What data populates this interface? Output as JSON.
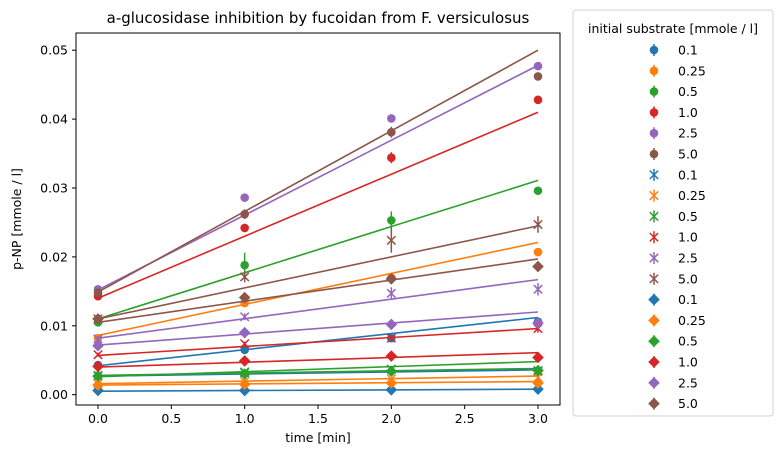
{
  "chart_data": {
    "type": "scatter",
    "title": "a-glucosidase inhibition by fucoidan from F. versiculosus",
    "xlabel": "time [min]",
    "ylabel": "p-NP [mmole / l]",
    "xlim": [
      -0.15,
      3.15
    ],
    "ylim": [
      -0.0015,
      0.0525
    ],
    "x_ticks": [
      0.0,
      0.5,
      1.0,
      1.5,
      2.0,
      2.5,
      3.0
    ],
    "x_tick_labels": [
      "0.0",
      "0.5",
      "1.0",
      "1.5",
      "2.0",
      "2.5",
      "3.0"
    ],
    "y_ticks": [
      0.0,
      0.01,
      0.02,
      0.03,
      0.04,
      0.05
    ],
    "y_tick_labels": [
      "0.00",
      "0.01",
      "0.02",
      "0.03",
      "0.04",
      "0.05"
    ],
    "grid": false,
    "legend": {
      "title": "initial substrate [mmole / l]",
      "placement": "outside-right"
    },
    "x": [
      0,
      1,
      2,
      3
    ],
    "series": [
      {
        "name": "0.1",
        "marker": "circle",
        "color": "#1f77b4",
        "values": [
          0.0043,
          0.0065,
          0.0082,
          0.0106
        ],
        "err": [
          0.0003,
          0.0003,
          0.0003,
          0.0004
        ],
        "fit": [
          0.0042,
          0.0112
        ]
      },
      {
        "name": "0.25",
        "marker": "circle",
        "color": "#ff7f0e",
        "values": [
          0.0082,
          0.0133,
          0.017,
          0.0207
        ],
        "err": [
          0.0003,
          0.0004,
          0.0004,
          0.0004
        ],
        "fit": [
          0.0086,
          0.0221
        ]
      },
      {
        "name": "0.5",
        "marker": "circle",
        "color": "#2ca02c",
        "values": [
          0.0105,
          0.0188,
          0.0253,
          0.0296
        ],
        "err": [
          0.0004,
          0.0018,
          0.0013,
          0.0005
        ],
        "fit": [
          0.011,
          0.0311
        ]
      },
      {
        "name": "1.0",
        "marker": "circle",
        "color": "#d62728",
        "values": [
          0.0143,
          0.0242,
          0.0344,
          0.0428
        ],
        "err": [
          0.0004,
          0.0006,
          0.0008,
          0.0004
        ],
        "fit": [
          0.014,
          0.041
        ]
      },
      {
        "name": "2.5",
        "marker": "circle",
        "color": "#9467bd",
        "values": [
          0.0153,
          0.0286,
          0.0401,
          0.0477
        ],
        "err": [
          0.0004,
          0.0004,
          0.0004,
          0.0004
        ],
        "fit": [
          0.0152,
          0.0478
        ]
      },
      {
        "name": "5.0",
        "marker": "circle",
        "color": "#8c564b",
        "values": [
          0.0148,
          0.0262,
          0.0381,
          0.0462
        ],
        "err": [
          0.0004,
          0.0007,
          0.0008,
          0.0005
        ],
        "fit": [
          0.0149,
          0.05
        ]
      },
      {
        "name": "0.1",
        "marker": "x",
        "color": "#1f77b4",
        "values": [
          0.0027,
          0.0032,
          0.0037,
          0.0034
        ],
        "err": [
          0.0002,
          0.0002,
          0.0002,
          0.0002
        ],
        "fit": [
          0.0027,
          0.0036
        ]
      },
      {
        "name": "0.25",
        "marker": "x",
        "color": "#ff7f0e",
        "values": [
          0.0016,
          0.0019,
          0.0023,
          0.0025
        ],
        "err": [
          0.0002,
          0.0002,
          0.0002,
          0.0002
        ],
        "fit": [
          0.0016,
          0.0027
        ]
      },
      {
        "name": "0.5",
        "marker": "x",
        "color": "#2ca02c",
        "values": [
          0.0028,
          0.0033,
          0.0037,
          0.0035
        ],
        "err": [
          0.0002,
          0.0002,
          0.0002,
          0.0002
        ],
        "fit": [
          0.0028,
          0.0038
        ]
      },
      {
        "name": "1.0",
        "marker": "x",
        "color": "#d62728",
        "values": [
          0.0058,
          0.0074,
          0.0082,
          0.0096
        ],
        "err": [
          0.0003,
          0.0003,
          0.0003,
          0.0006
        ],
        "fit": [
          0.0057,
          0.0096
        ]
      },
      {
        "name": "2.5",
        "marker": "x",
        "color": "#9467bd",
        "values": [
          0.0081,
          0.0113,
          0.0147,
          0.0153
        ],
        "err": [
          0.0004,
          0.0005,
          0.0009,
          0.0009
        ],
        "fit": [
          0.0082,
          0.0167
        ]
      },
      {
        "name": "5.0",
        "marker": "x",
        "color": "#8c564b",
        "values": [
          0.011,
          0.0171,
          0.0224,
          0.0247
        ],
        "err": [
          0.0005,
          0.0008,
          0.0018,
          0.0012
        ],
        "fit": [
          0.011,
          0.0245
        ]
      },
      {
        "name": "0.1",
        "marker": "diamond",
        "color": "#1f77b4",
        "values": [
          0.0006,
          0.0006,
          0.0007,
          0.0008
        ],
        "err": [
          0.0001,
          0.0001,
          0.0001,
          0.0001
        ],
        "fit": [
          0.0005,
          0.0008
        ]
      },
      {
        "name": "0.25",
        "marker": "diamond",
        "color": "#ff7f0e",
        "values": [
          0.0014,
          0.0015,
          0.0017,
          0.0017
        ],
        "err": [
          0.0001,
          0.0001,
          0.0001,
          0.0001
        ],
        "fit": [
          0.0014,
          0.0019
        ]
      },
      {
        "name": "0.5",
        "marker": "diamond",
        "color": "#2ca02c",
        "values": [
          0.0027,
          0.003,
          0.0034,
          0.0035
        ],
        "err": [
          0.0002,
          0.0002,
          0.0002,
          0.0002
        ],
        "fit": [
          0.0026,
          0.0048
        ]
      },
      {
        "name": "1.0",
        "marker": "diamond",
        "color": "#d62728",
        "values": [
          0.0041,
          0.0049,
          0.0056,
          0.0054
        ],
        "err": [
          0.0002,
          0.0002,
          0.0002,
          0.0002
        ],
        "fit": [
          0.004,
          0.0061
        ]
      },
      {
        "name": "2.5",
        "marker": "diamond",
        "color": "#9467bd",
        "values": [
          0.0071,
          0.009,
          0.0102,
          0.0104
        ],
        "err": [
          0.0003,
          0.0003,
          0.0004,
          0.0004
        ],
        "fit": [
          0.0072,
          0.012
        ]
      },
      {
        "name": "5.0",
        "marker": "diamond",
        "color": "#8c564b",
        "values": [
          0.011,
          0.0141,
          0.0168,
          0.0186
        ],
        "err": [
          0.0004,
          0.0004,
          0.0004,
          0.0005
        ],
        "fit": [
          0.0105,
          0.0197
        ]
      }
    ]
  }
}
